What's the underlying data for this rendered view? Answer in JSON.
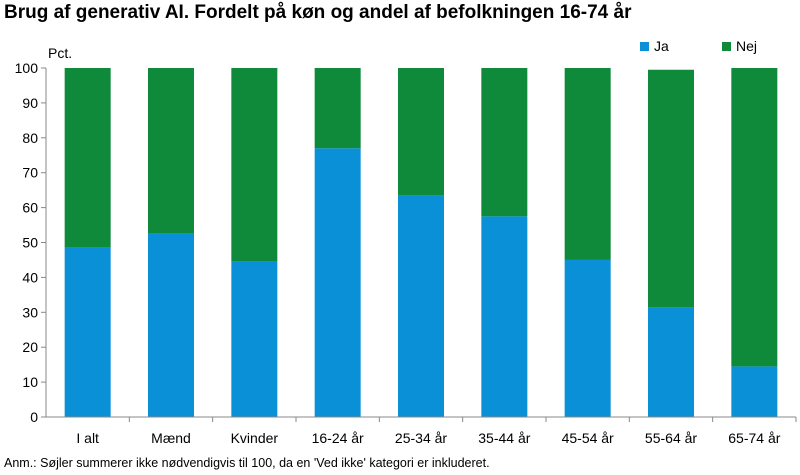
{
  "title": "Brug af generativ AI. Fordelt på køn og andel af befolkningen 16-74 år",
  "note": "Anm.: Søjler summerer ikke nødvendigvis til 100, da en 'Ved ikke' kategori er inkluderet.",
  "colors": {
    "ja": "#0A90D6",
    "nej": "#0E8A3A",
    "axis": "#888888"
  },
  "chart_data": {
    "type": "bar",
    "stacked": true,
    "title": "Brug af generativ AI. Fordelt på køn og andel af befolkningen 16-74 år",
    "ylabel": "Pct.",
    "xlabel": "",
    "ylim": [
      0,
      100
    ],
    "yticks": [
      0,
      10,
      20,
      30,
      40,
      50,
      60,
      70,
      80,
      90,
      100
    ],
    "grid": false,
    "legend_position": "top-right",
    "categories": [
      "I alt",
      "Mænd",
      "Kvinder",
      "16-24 år",
      "25-34 år",
      "35-44 år",
      "45-54 år",
      "55-64 år",
      "65-74 år"
    ],
    "series": [
      {
        "name": "Ja",
        "values": [
          48.5,
          52.5,
          44.5,
          77,
          63.5,
          57.5,
          45,
          31.5,
          14.5
        ]
      },
      {
        "name": "Nej",
        "values": [
          51.5,
          47.5,
          55.5,
          23,
          36.5,
          42.5,
          55,
          68,
          85.5
        ]
      }
    ]
  }
}
